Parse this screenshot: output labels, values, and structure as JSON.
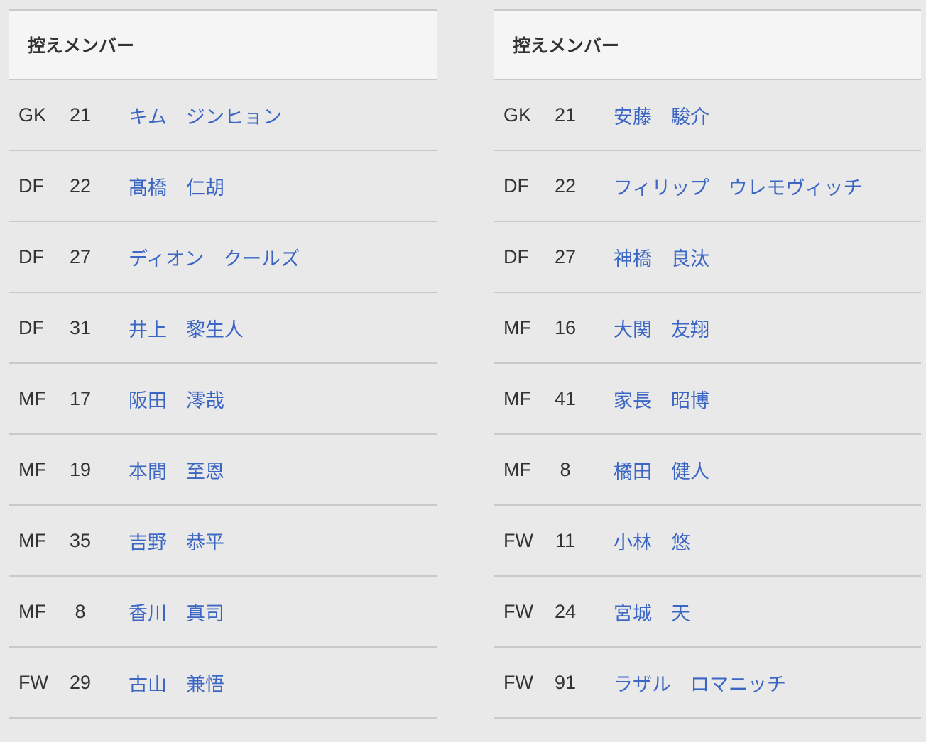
{
  "theme": {
    "page_bg": "#e9e9e9",
    "header_bg": "#f5f5f5",
    "border_color": "#c9c9c9",
    "text_color": "#333333",
    "link_color": "#3b66c4"
  },
  "tables": [
    {
      "title": "控えメンバー",
      "rows": [
        {
          "position": "GK",
          "number": "21",
          "name": "キム　ジンヒョン"
        },
        {
          "position": "DF",
          "number": "22",
          "name": "髙橋　仁胡"
        },
        {
          "position": "DF",
          "number": "27",
          "name": "ディオン　クールズ"
        },
        {
          "position": "DF",
          "number": "31",
          "name": "井上　黎生人"
        },
        {
          "position": "MF",
          "number": "17",
          "name": "阪田　澪哉"
        },
        {
          "position": "MF",
          "number": "19",
          "name": "本間　至恩"
        },
        {
          "position": "MF",
          "number": "35",
          "name": "吉野　恭平"
        },
        {
          "position": "MF",
          "number": "8",
          "name": "香川　真司"
        },
        {
          "position": "FW",
          "number": "29",
          "name": "古山　兼悟"
        }
      ]
    },
    {
      "title": "控えメンバー",
      "rows": [
        {
          "position": "GK",
          "number": "21",
          "name": "安藤　駿介"
        },
        {
          "position": "DF",
          "number": "22",
          "name": "フィリップ　ウレモヴィッチ"
        },
        {
          "position": "DF",
          "number": "27",
          "name": "神橋　良汰"
        },
        {
          "position": "MF",
          "number": "16",
          "name": "大関　友翔"
        },
        {
          "position": "MF",
          "number": "41",
          "name": "家長　昭博"
        },
        {
          "position": "MF",
          "number": "8",
          "name": "橘田　健人"
        },
        {
          "position": "FW",
          "number": "11",
          "name": "小林　悠"
        },
        {
          "position": "FW",
          "number": "24",
          "name": "宮城　天"
        },
        {
          "position": "FW",
          "number": "91",
          "name": "ラザル　ロマニッチ"
        }
      ]
    }
  ]
}
